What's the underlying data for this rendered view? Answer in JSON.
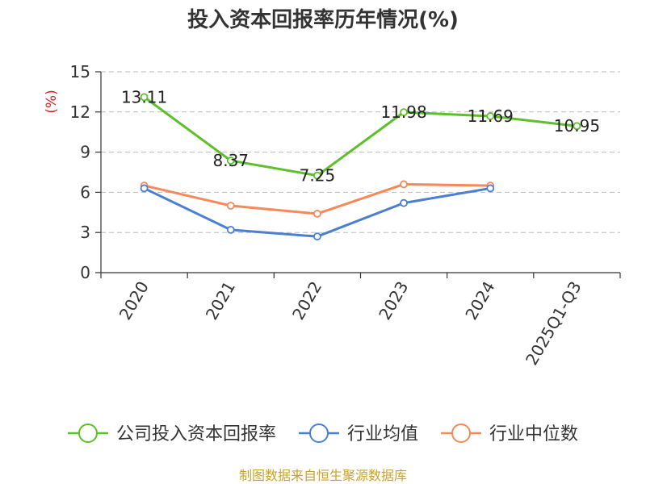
{
  "chart_data": {
    "type": "line",
    "title": "投入资本回报率历年情况(%)",
    "ylabel": "(%)",
    "xlabel": "",
    "categories": [
      "2020",
      "2021",
      "2022",
      "2023",
      "2024",
      "2025Q1-Q3"
    ],
    "ylim": [
      0,
      15
    ],
    "yticks": [
      0,
      3,
      6,
      9,
      12,
      15
    ],
    "grid": true,
    "legend_position": "bottom",
    "series": [
      {
        "name": "公司投入资本回报率",
        "color": "#5dbf2a",
        "values": [
          13.11,
          8.37,
          7.25,
          11.98,
          11.69,
          10.95
        ],
        "labels": [
          "13.11",
          "8.37",
          "7.25",
          "11.98",
          "11.69",
          "10.95"
        ]
      },
      {
        "name": "行业均值",
        "color": "#4a7fd4",
        "values": [
          6.3,
          3.2,
          2.7,
          5.2,
          6.3,
          null
        ]
      },
      {
        "name": "行业中位数",
        "color": "#f5895a",
        "values": [
          6.5,
          5.0,
          4.4,
          6.6,
          6.5,
          null
        ]
      }
    ],
    "source": "制图数据来自恒生聚源数据库"
  }
}
